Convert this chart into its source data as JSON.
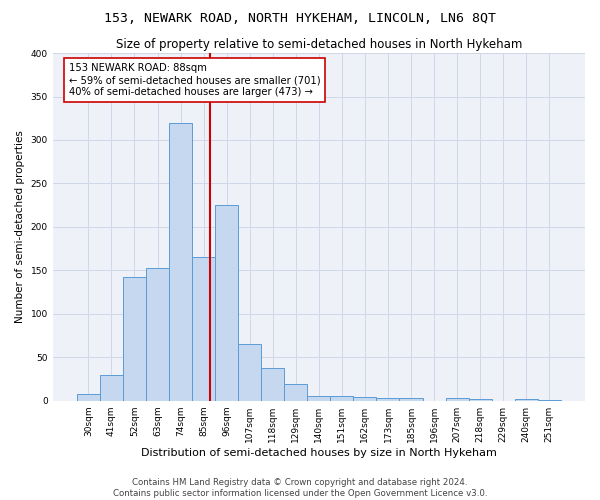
{
  "title1": "153, NEWARK ROAD, NORTH HYKEHAM, LINCOLN, LN6 8QT",
  "title2": "Size of property relative to semi-detached houses in North Hykeham",
  "xlabel": "Distribution of semi-detached houses by size in North Hykeham",
  "ylabel": "Number of semi-detached properties",
  "categories": [
    "30sqm",
    "41sqm",
    "52sqm",
    "63sqm",
    "74sqm",
    "85sqm",
    "96sqm",
    "107sqm",
    "118sqm",
    "129sqm",
    "140sqm",
    "151sqm",
    "162sqm",
    "173sqm",
    "185sqm",
    "196sqm",
    "207sqm",
    "218sqm",
    "229sqm",
    "240sqm",
    "251sqm"
  ],
  "values": [
    8,
    30,
    142,
    153,
    320,
    165,
    225,
    65,
    38,
    19,
    5,
    5,
    4,
    3,
    3,
    0,
    3,
    2,
    0,
    2,
    1
  ],
  "bar_color": "#c5d8f0",
  "bar_edge_color": "#5b9bd5",
  "vline_x": 5.27,
  "vline_color": "#cc0000",
  "annotation_text": "153 NEWARK ROAD: 88sqm\n← 59% of semi-detached houses are smaller (701)\n40% of semi-detached houses are larger (473) →",
  "annotation_box_color": "#ffffff",
  "annotation_box_edge": "#cc0000",
  "footnote1": "Contains HM Land Registry data © Crown copyright and database right 2024.",
  "footnote2": "Contains public sector information licensed under the Open Government Licence v3.0.",
  "ylim": [
    0,
    400
  ],
  "yticks": [
    0,
    50,
    100,
    150,
    200,
    250,
    300,
    350,
    400
  ],
  "grid_color": "#d0d8e8",
  "bg_color": "#eef2f8",
  "title1_fontsize": 9.5,
  "title2_fontsize": 8.5,
  "xlabel_fontsize": 8.0,
  "ylabel_fontsize": 7.5,
  "tick_fontsize": 6.5,
  "footnote_fontsize": 6.2,
  "annot_fontsize": 7.2
}
